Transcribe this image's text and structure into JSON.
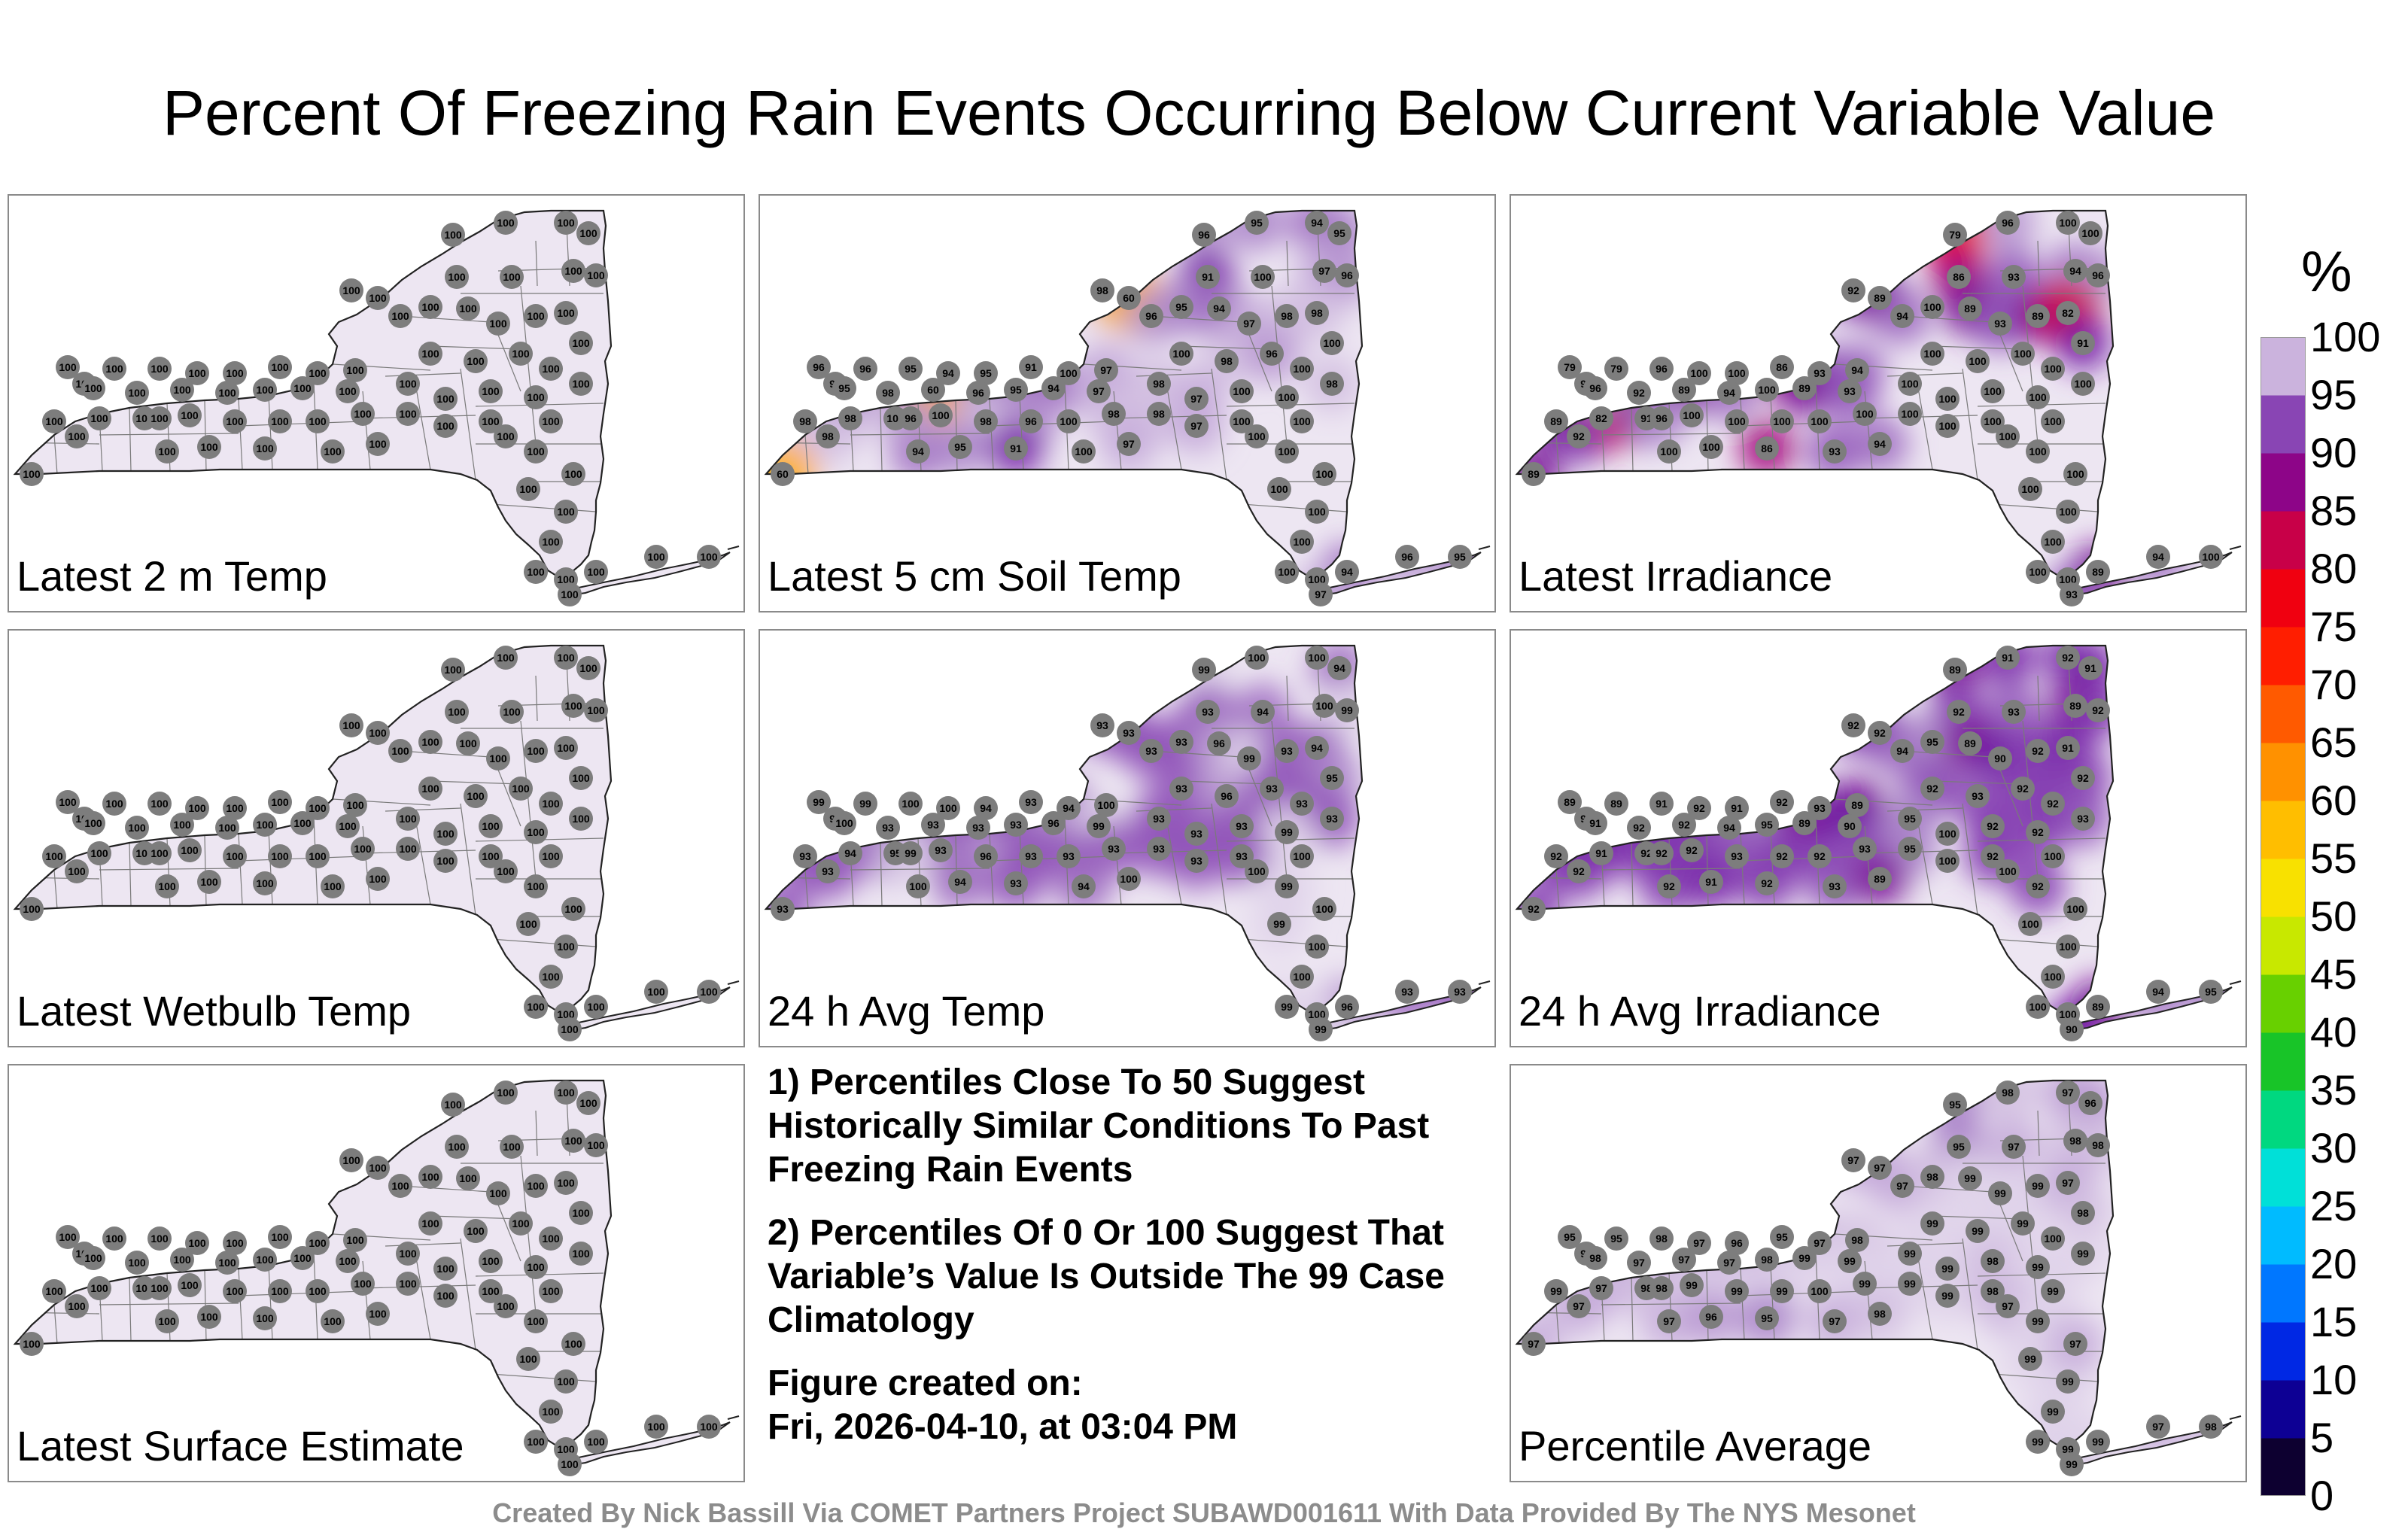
{
  "title": "Percent Of Freezing Rain Events Occurring Below Current Variable Value",
  "colorbar": {
    "unit": "%",
    "ticks": [
      "100",
      "95",
      "90",
      "85",
      "80",
      "75",
      "70",
      "65",
      "60",
      "55",
      "50",
      "45",
      "40",
      "35",
      "30",
      "25",
      "20",
      "15",
      "10",
      "5",
      "0"
    ],
    "range": [
      0,
      100
    ],
    "colors": {
      "c0": "#000000",
      "c5": "#1a0060",
      "c10": "#0000c8",
      "c15": "#0050ff",
      "c20": "#009eff",
      "c25": "#00d8ff",
      "c30": "#00e8b0",
      "c35": "#00c850",
      "c40": "#30c000",
      "c45": "#a0e000",
      "c50": "#f0f000",
      "c55": "#ffd200",
      "c60": "#ffaa00",
      "c65": "#ff7800",
      "c70": "#ff3c00",
      "c75": "#ff0000",
      "c80": "#e00020",
      "c85": "#b00070",
      "c90": "#6a0aa0",
      "c95": "#a880c8",
      "c100": "#ede6f2"
    }
  },
  "panels": [
    {
      "label": "Latest 2 m Temp",
      "stations": [
        "100",
        "100",
        "100",
        "100",
        "100",
        "100",
        "100",
        "100",
        "100",
        "100",
        "100",
        "100",
        "100",
        "100",
        "100",
        "100",
        "100",
        "100",
        "100",
        "100",
        "100",
        "100",
        "100",
        "100",
        "100",
        "100",
        "100",
        "100",
        "100",
        "100"
      ]
    },
    {
      "label": "Latest 5 cm Soil Temp",
      "stations": [
        "96",
        "95",
        "94",
        "95",
        "91",
        "100",
        "97",
        "96",
        "98",
        "60",
        "96",
        "95",
        "94",
        "97",
        "98",
        "98",
        "100",
        "100",
        "98",
        "96",
        "100",
        "98",
        "98",
        "97",
        "100",
        "100",
        "100",
        "100",
        "100",
        "100"
      ]
    },
    {
      "label": "Latest Irradiance",
      "stations": [
        "79",
        "96",
        "100",
        "100",
        "86",
        "93",
        "94",
        "96",
        "92",
        "89",
        "94",
        "100",
        "89",
        "93",
        "89",
        "82",
        "91",
        "100",
        "100",
        "100",
        "100",
        "100",
        "100",
        "100",
        "100",
        "100",
        "100",
        "100",
        "100",
        "100"
      ]
    },
    {
      "label": "Latest Wetbulb Temp",
      "stations": [
        "100",
        "100",
        "100",
        "100",
        "100",
        "100",
        "100",
        "100",
        "100",
        "100",
        "100",
        "100",
        "100",
        "100",
        "100",
        "100",
        "100",
        "100",
        "100",
        "100",
        "100",
        "100",
        "100",
        "100",
        "100",
        "100",
        "100",
        "100",
        "100",
        "100"
      ]
    },
    {
      "label": "24 h Avg Temp",
      "stations": [
        "99",
        "100",
        "100",
        "94",
        "93",
        "94",
        "100",
        "99",
        "93",
        "93",
        "93",
        "93",
        "96",
        "99",
        "93",
        "94",
        "95",
        "93",
        "96",
        "93",
        "93",
        "93",
        "93",
        "93",
        "93",
        "99",
        "100",
        "100",
        "99",
        "100"
      ]
    },
    {
      "label": "24 h Avg Irradiance",
      "stations": [
        "89",
        "91",
        "92",
        "91",
        "92",
        "93",
        "89",
        "92",
        "92",
        "92",
        "94",
        "95",
        "89",
        "90",
        "92",
        "91",
        "92",
        "92",
        "93",
        "92",
        "92",
        "93",
        "95",
        "100",
        "92",
        "92",
        "100",
        "100",
        "100",
        "100"
      ]
    },
    {
      "label": "Latest Surface Estimate",
      "stations": [
        "100",
        "100",
        "100",
        "100",
        "100",
        "100",
        "100",
        "100",
        "100",
        "100",
        "100",
        "100",
        "100",
        "100",
        "100",
        "100",
        "100",
        "100",
        "100",
        "100",
        "100",
        "100",
        "100",
        "100",
        "100",
        "100",
        "100",
        "100",
        "100",
        "100"
      ]
    },
    {
      "label": "Percentile Average",
      "stations": [
        "95",
        "98",
        "97",
        "96",
        "95",
        "97",
        "98",
        "98",
        "97",
        "97",
        "97",
        "98",
        "99",
        "99",
        "99",
        "97",
        "98",
        "99",
        "99",
        "99",
        "100",
        "99",
        "99",
        "99",
        "98",
        "99",
        "97",
        "99",
        "99",
        "99"
      ]
    }
  ],
  "notes": {
    "note1": "1) Percentiles Close To 50 Suggest Historically Similar Conditions To Past Freezing Rain Events",
    "note2": "2) Percentiles Of 0 Or 100 Suggest That Variable’s Value Is Outside The 99 Case Climatology",
    "created_label": "Figure created on:",
    "created_value": "Fri, 2026-04-10, at 03:04 PM"
  },
  "credit": "Created By Nick Bassill Via COMET Partners Project SUBAWD001611 With Data Provided By The NYS Mesonet"
}
